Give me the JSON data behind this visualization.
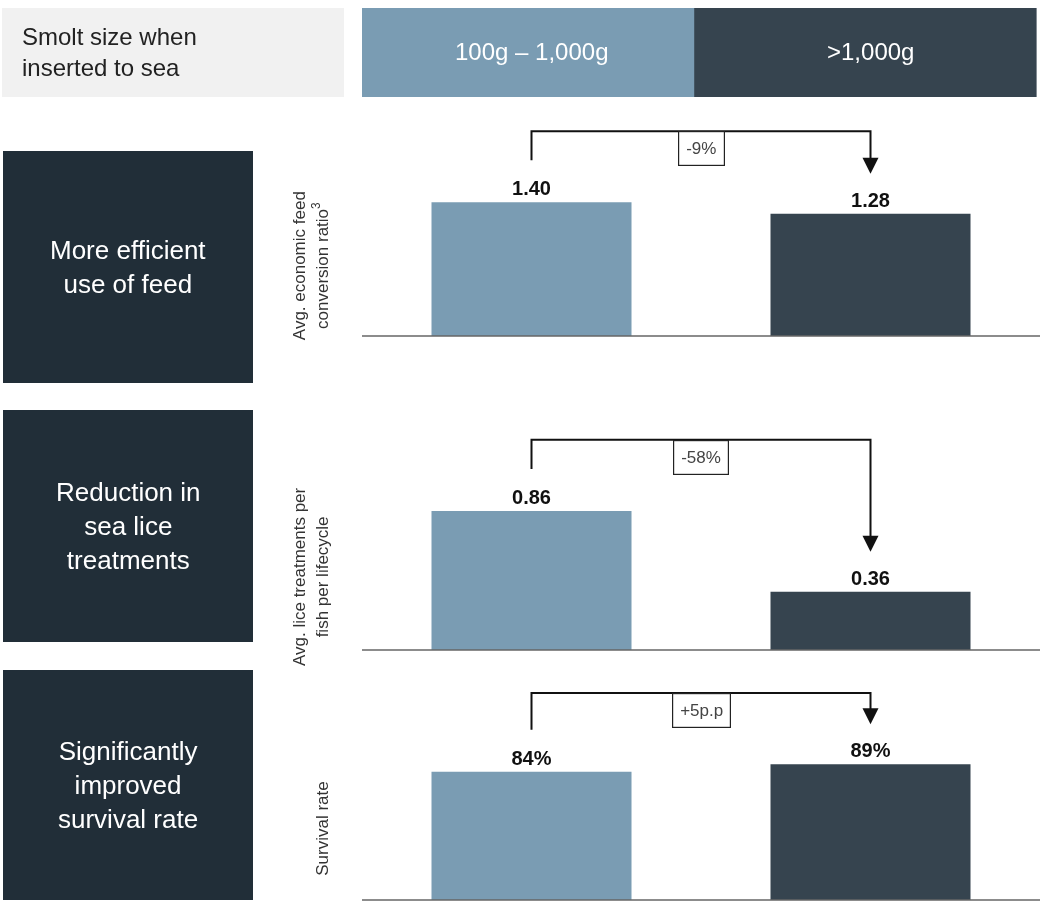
{
  "chart_data": [
    {
      "type": "bar",
      "ylabel": "Avg. economic feed conversion ratio$^{3}$",
      "categories": [
        "100g – 1,000g",
        ">1,000g"
      ],
      "values": [
        1.4,
        1.28
      ],
      "value_labels": [
        "1.40",
        "1.28"
      ],
      "colors": [
        "#7a9cb3",
        "#36444f"
      ],
      "annotations": [
        "Smolt size when inserted to sea",
        "More efficient use of feed",
        "-9%"
      ],
      "tick_labels": "x"
    },
    {
      "type": "bar",
      "ylabel": "Avg. lice treatments per fish per lifecycle",
      "categories": [
        null,
        null
      ],
      "values": [
        0.86,
        0.36
      ],
      "value_labels": [
        "0.86",
        "0.36"
      ],
      "colors": [
        "#7a9cb3",
        "#36444f"
      ],
      "annotations": [
        "Reduction in sea lice treatments",
        "-58%"
      ],
      "tick_labels": false
    },
    {
      "type": "bar",
      "ylabel": "Survival rate",
      "categories": [
        null,
        null
      ],
      "values": [
        84,
        89
      ],
      "value_labels": [
        "84%",
        "89%"
      ],
      "colors": [
        "#7a9cb3",
        "#36444f"
      ],
      "annotations": [
        "Significantly improved survival rate",
        "+5p.p"
      ],
      "tick_labels": false
    }
  ]
}
